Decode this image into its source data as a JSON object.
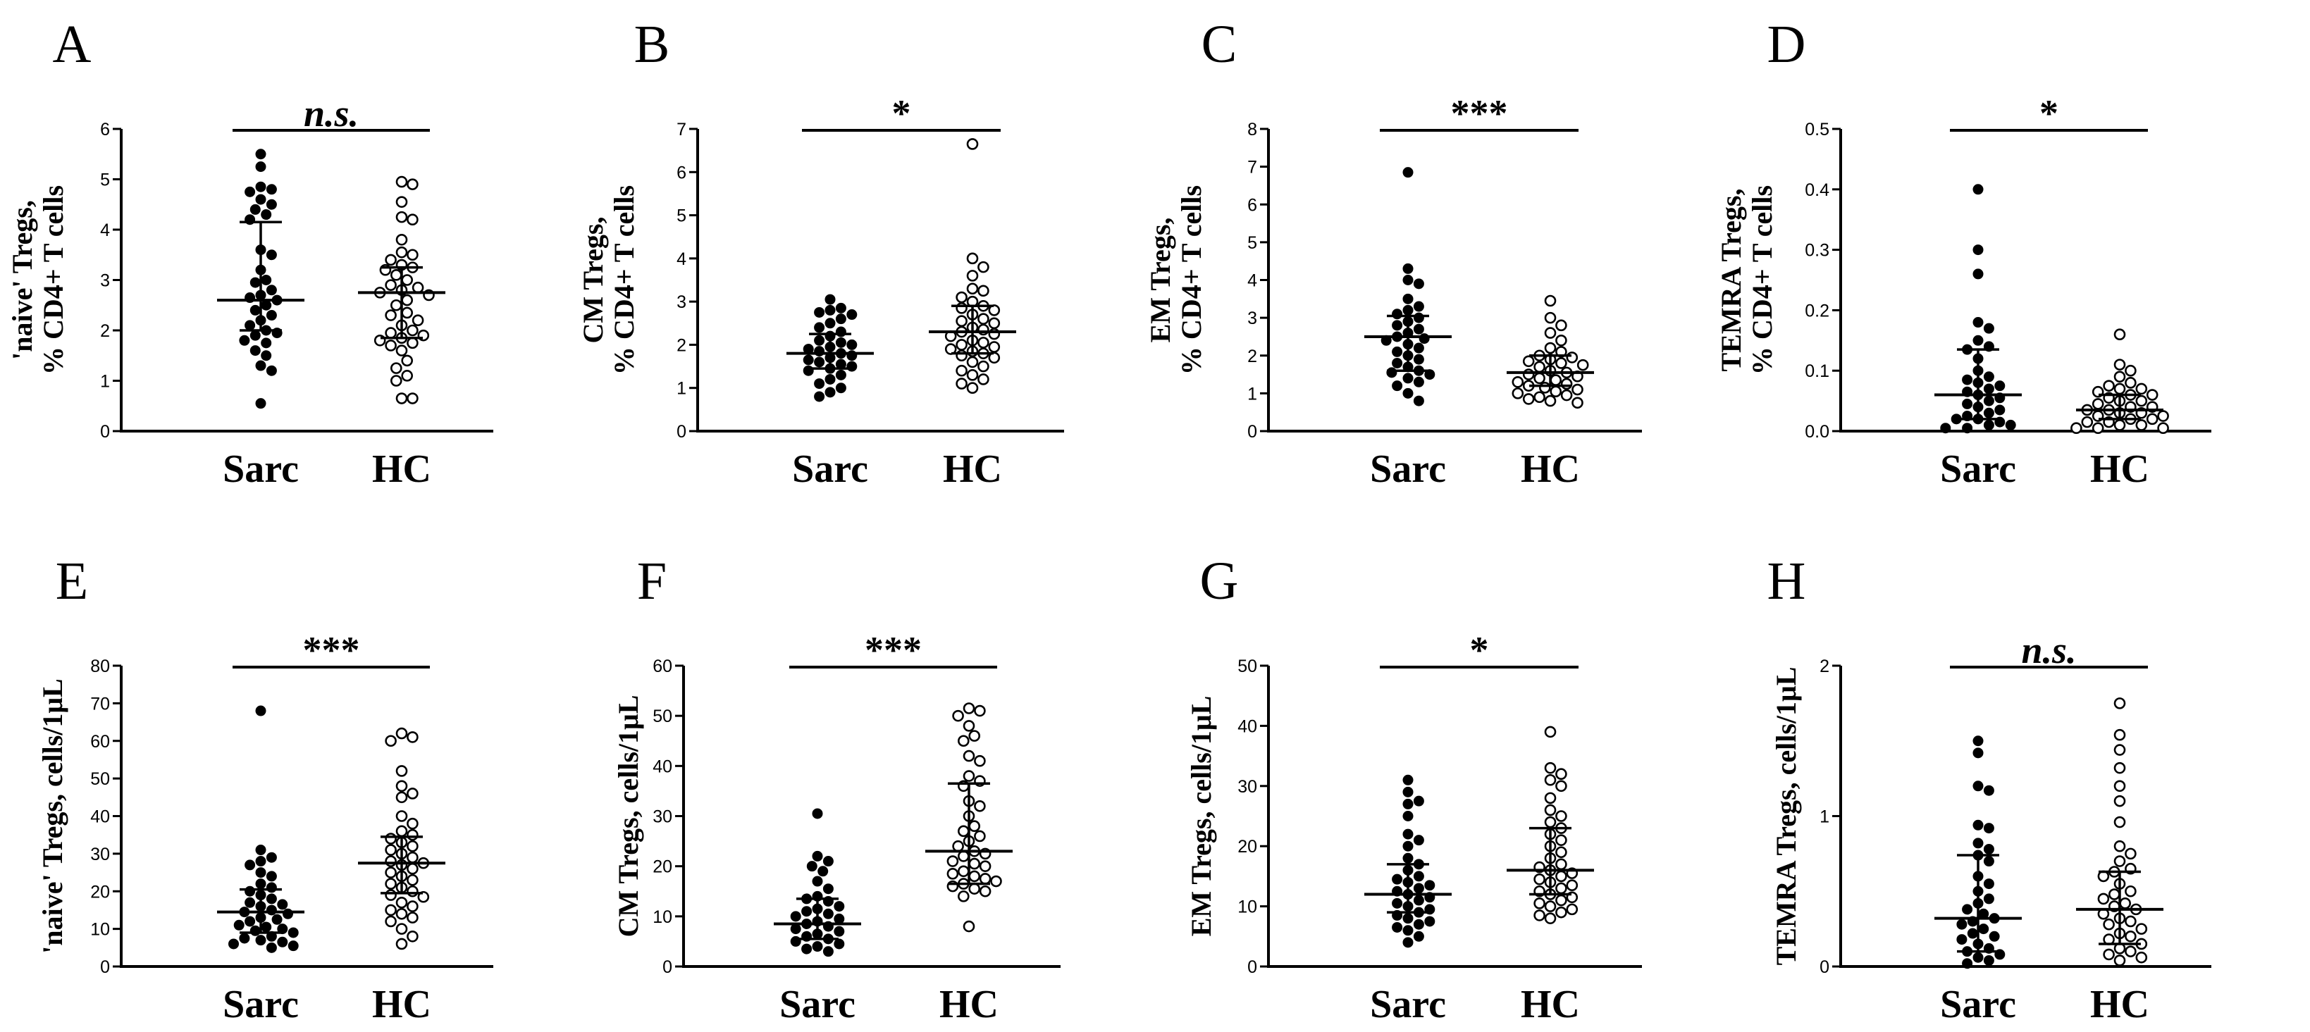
{
  "chart_data": [
    {
      "type": "scatter",
      "panel": "A",
      "ylabel_lines": [
        "'naive' Tregs,",
        "% CD4+ T cells"
      ],
      "categories": [
        "Sarc",
        "HC"
      ],
      "ylim": [
        0,
        6
      ],
      "yticks": [
        0,
        1,
        2,
        3,
        4,
        5,
        6
      ],
      "significance": "n.s.",
      "significance_italic": true,
      "series": [
        {
          "group": "Sarc",
          "marker": "filled",
          "median": 2.6,
          "iqr": [
            2.0,
            4.15
          ],
          "values": [
            5.5,
            5.25,
            4.85,
            4.8,
            4.75,
            4.6,
            4.5,
            4.4,
            4.3,
            4.2,
            3.6,
            3.5,
            3.2,
            3.0,
            2.95,
            2.8,
            2.7,
            2.65,
            2.6,
            2.5,
            2.4,
            2.3,
            2.2,
            2.1,
            2.0,
            1.95,
            1.9,
            1.8,
            1.75,
            1.6,
            1.5,
            1.3,
            1.2,
            0.55
          ]
        },
        {
          "group": "HC",
          "marker": "open",
          "median": 2.75,
          "iqr": [
            1.85,
            3.25
          ],
          "values": [
            4.95,
            4.9,
            4.55,
            4.25,
            4.2,
            3.8,
            3.55,
            3.5,
            3.4,
            3.3,
            3.25,
            3.2,
            3.1,
            3.0,
            2.9,
            2.85,
            2.8,
            2.75,
            2.7,
            2.6,
            2.5,
            2.35,
            2.3,
            2.2,
            2.1,
            2.0,
            1.95,
            1.9,
            1.85,
            1.8,
            1.75,
            1.7,
            1.6,
            1.4,
            1.25,
            1.1,
            1.0,
            0.65,
            0.65
          ]
        }
      ]
    },
    {
      "type": "scatter",
      "panel": "B",
      "ylabel_lines": [
        "CM Tregs,",
        "% CD4+ T cells"
      ],
      "categories": [
        "Sarc",
        "HC"
      ],
      "ylim": [
        0,
        7
      ],
      "yticks": [
        0,
        1,
        2,
        3,
        4,
        5,
        6,
        7
      ],
      "significance": "*",
      "significance_italic": false,
      "series": [
        {
          "group": "Sarc",
          "marker": "filled",
          "median": 1.8,
          "iqr": [
            1.45,
            2.25
          ],
          "values": [
            3.05,
            2.85,
            2.8,
            2.75,
            2.7,
            2.6,
            2.5,
            2.4,
            2.3,
            2.2,
            2.1,
            2.05,
            2.0,
            1.95,
            1.9,
            1.85,
            1.8,
            1.75,
            1.7,
            1.65,
            1.6,
            1.55,
            1.5,
            1.45,
            1.4,
            1.3,
            1.2,
            1.1,
            1.0,
            0.9,
            0.8
          ]
        },
        {
          "group": "HC",
          "marker": "open",
          "median": 2.3,
          "iqr": [
            1.8,
            2.9
          ],
          "values": [
            6.65,
            4.0,
            3.8,
            3.6,
            3.3,
            3.25,
            3.1,
            3.0,
            2.9,
            2.85,
            2.8,
            2.7,
            2.6,
            2.55,
            2.5,
            2.4,
            2.35,
            2.3,
            2.25,
            2.2,
            2.1,
            2.05,
            2.0,
            1.95,
            1.9,
            1.85,
            1.8,
            1.75,
            1.7,
            1.6,
            1.5,
            1.4,
            1.3,
            1.2,
            1.1,
            1.0
          ]
        }
      ]
    },
    {
      "type": "scatter",
      "panel": "C",
      "ylabel_lines": [
        "EM Tregs,",
        "% CD4+ T cells"
      ],
      "categories": [
        "Sarc",
        "HC"
      ],
      "ylim": [
        0,
        8
      ],
      "yticks": [
        0,
        1,
        2,
        3,
        4,
        5,
        6,
        7,
        8
      ],
      "significance": "***",
      "significance_italic": false,
      "series": [
        {
          "group": "Sarc",
          "marker": "filled",
          "median": 2.5,
          "iqr": [
            1.6,
            3.05
          ],
          "values": [
            6.85,
            4.3,
            4.0,
            3.9,
            3.5,
            3.3,
            3.2,
            3.1,
            3.0,
            2.9,
            2.8,
            2.7,
            2.6,
            2.5,
            2.45,
            2.4,
            2.3,
            2.2,
            2.1,
            2.0,
            1.9,
            1.8,
            1.7,
            1.6,
            1.55,
            1.5,
            1.4,
            1.3,
            1.2,
            1.0,
            0.8
          ]
        },
        {
          "group": "HC",
          "marker": "open",
          "median": 1.55,
          "iqr": [
            1.2,
            2.0
          ],
          "values": [
            3.45,
            3.0,
            2.8,
            2.6,
            2.4,
            2.2,
            2.1,
            2.0,
            1.95,
            1.9,
            1.85,
            1.8,
            1.75,
            1.7,
            1.6,
            1.55,
            1.5,
            1.45,
            1.4,
            1.35,
            1.3,
            1.25,
            1.2,
            1.15,
            1.1,
            1.05,
            1.0,
            0.95,
            0.9,
            0.85,
            0.8,
            0.75
          ]
        }
      ]
    },
    {
      "type": "scatter",
      "panel": "D",
      "ylabel_lines": [
        "TEMRA Tregs,",
        "% CD4+ T cells"
      ],
      "categories": [
        "Sarc",
        "HC"
      ],
      "ylim": [
        0,
        0.5
      ],
      "yticks": [
        0.0,
        0.1,
        0.2,
        0.3,
        0.4,
        0.5
      ],
      "ytick_labels": [
        "0.0",
        "0.1",
        "0.2",
        "0.3",
        "0.4",
        "0.5"
      ],
      "significance": "*",
      "significance_italic": false,
      "series": [
        {
          "group": "Sarc",
          "marker": "filled",
          "median": 0.06,
          "iqr": [
            0.02,
            0.135
          ],
          "values": [
            0.4,
            0.3,
            0.26,
            0.18,
            0.17,
            0.15,
            0.14,
            0.135,
            0.12,
            0.1,
            0.09,
            0.085,
            0.08,
            0.075,
            0.07,
            0.065,
            0.06,
            0.055,
            0.05,
            0.045,
            0.04,
            0.035,
            0.03,
            0.025,
            0.02,
            0.02,
            0.015,
            0.01,
            0.01,
            0.005,
            0.005
          ]
        },
        {
          "group": "HC",
          "marker": "open",
          "median": 0.035,
          "iqr": [
            0.02,
            0.06
          ],
          "values": [
            0.16,
            0.11,
            0.1,
            0.09,
            0.08,
            0.075,
            0.07,
            0.07,
            0.065,
            0.06,
            0.06,
            0.055,
            0.05,
            0.05,
            0.045,
            0.04,
            0.04,
            0.035,
            0.035,
            0.03,
            0.03,
            0.025,
            0.025,
            0.02,
            0.02,
            0.015,
            0.015,
            0.01,
            0.01,
            0.005,
            0.005,
            0.005
          ]
        }
      ]
    },
    {
      "type": "scatter",
      "panel": "E",
      "ylabel_lines": [
        "'naive' Tregs, cells/1μL"
      ],
      "categories": [
        "Sarc",
        "HC"
      ],
      "ylim": [
        0,
        80
      ],
      "yticks": [
        0,
        10,
        20,
        30,
        40,
        50,
        60,
        70,
        80
      ],
      "significance": "***",
      "significance_italic": false,
      "series": [
        {
          "group": "Sarc",
          "marker": "filled",
          "median": 14.5,
          "iqr": [
            9.0,
            20.5
          ],
          "values": [
            68,
            31,
            29,
            28,
            27,
            25,
            24,
            22,
            21,
            20,
            19,
            18,
            17,
            16.5,
            16,
            15,
            14.5,
            14,
            13,
            12.5,
            12,
            11,
            10.5,
            10,
            9.5,
            9,
            8,
            7.5,
            7,
            6.5,
            6,
            5.5,
            5
          ]
        },
        {
          "group": "HC",
          "marker": "open",
          "median": 27.5,
          "iqr": [
            19.5,
            34.5
          ],
          "values": [
            62,
            61,
            60,
            52,
            48,
            46,
            45,
            40,
            38,
            36,
            35,
            34,
            33,
            32,
            31,
            30,
            29,
            28,
            27.5,
            27,
            26,
            25,
            24,
            23,
            22,
            21,
            20,
            19,
            18.5,
            17,
            16,
            15,
            14,
            13,
            12,
            10,
            8,
            6
          ]
        }
      ]
    },
    {
      "type": "scatter",
      "panel": "F",
      "ylabel_lines": [
        "CM Tregs, cells/1μL"
      ],
      "categories": [
        "Sarc",
        "HC"
      ],
      "ylim": [
        0,
        60
      ],
      "yticks": [
        0,
        10,
        20,
        30,
        40,
        50,
        60
      ],
      "significance": "***",
      "significance_italic": false,
      "series": [
        {
          "group": "Sarc",
          "marker": "filled",
          "median": 8.5,
          "iqr": [
            5.5,
            13.5
          ],
          "values": [
            30.5,
            22,
            21,
            20,
            19,
            17,
            15.5,
            14,
            13.5,
            13,
            12,
            11.5,
            11,
            10.5,
            10,
            9.5,
            9,
            8.5,
            8,
            7.5,
            7,
            6.5,
            6,
            5.5,
            5,
            4.5,
            4,
            3.5,
            3
          ]
        },
        {
          "group": "HC",
          "marker": "open",
          "median": 23.0,
          "iqr": [
            16.5,
            36.5
          ],
          "values": [
            51.5,
            51,
            50,
            48,
            46,
            45,
            42,
            41,
            38,
            37,
            36,
            33,
            32,
            30,
            28,
            27,
            26,
            25,
            24,
            23,
            22.5,
            22,
            21,
            20.5,
            20,
            19,
            18.5,
            18,
            17.5,
            17,
            16.5,
            16,
            15.5,
            15,
            14,
            8
          ]
        }
      ]
    },
    {
      "type": "scatter",
      "panel": "G",
      "ylabel_lines": [
        "EM Tregs, cells/1μL"
      ],
      "categories": [
        "Sarc",
        "HC"
      ],
      "ylim": [
        0,
        50
      ],
      "yticks": [
        0,
        10,
        20,
        30,
        40,
        50
      ],
      "significance": "*",
      "significance_italic": false,
      "series": [
        {
          "group": "Sarc",
          "marker": "filled",
          "median": 12.0,
          "iqr": [
            9.0,
            17.0
          ],
          "values": [
            31,
            29,
            27.5,
            27,
            25,
            22,
            21,
            20,
            18,
            17,
            16,
            15,
            14.5,
            14,
            13.5,
            13,
            12.5,
            12,
            11.5,
            11,
            10.5,
            10,
            9.5,
            9,
            8.5,
            8,
            7.5,
            7,
            6.5,
            6,
            5,
            4
          ]
        },
        {
          "group": "HC",
          "marker": "open",
          "median": 16.0,
          "iqr": [
            12.0,
            23.0
          ],
          "values": [
            39,
            33,
            32,
            31,
            30,
            28,
            26,
            25,
            24,
            23,
            22,
            21,
            20,
            19,
            18,
            17,
            16.5,
            16,
            15.5,
            15,
            14.5,
            14,
            13.5,
            13,
            12.5,
            12,
            11.5,
            11,
            10.5,
            10,
            9.5,
            9,
            8.5,
            8
          ]
        }
      ]
    },
    {
      "type": "scatter",
      "panel": "H",
      "ylabel_lines": [
        "TEMRA Tregs, cells/1μL"
      ],
      "categories": [
        "Sarc",
        "HC"
      ],
      "ylim": [
        0,
        2
      ],
      "yticks": [
        0,
        1,
        2
      ],
      "significance": "n.s.",
      "significance_italic": true,
      "series": [
        {
          "group": "Sarc",
          "marker": "filled",
          "median": 0.32,
          "iqr": [
            0.1,
            0.74
          ],
          "values": [
            1.5,
            1.42,
            1.2,
            1.17,
            0.94,
            0.92,
            0.82,
            0.78,
            0.74,
            0.7,
            0.6,
            0.55,
            0.5,
            0.45,
            0.42,
            0.38,
            0.35,
            0.32,
            0.3,
            0.28,
            0.25,
            0.22,
            0.2,
            0.18,
            0.15,
            0.12,
            0.1,
            0.08,
            0.06,
            0.04,
            0.02
          ]
        },
        {
          "group": "HC",
          "marker": "open",
          "median": 0.38,
          "iqr": [
            0.15,
            0.63
          ],
          "values": [
            1.75,
            1.54,
            1.44,
            1.32,
            1.2,
            1.1,
            0.96,
            0.8,
            0.75,
            0.7,
            0.65,
            0.63,
            0.6,
            0.55,
            0.5,
            0.48,
            0.45,
            0.42,
            0.4,
            0.38,
            0.35,
            0.32,
            0.3,
            0.28,
            0.25,
            0.22,
            0.2,
            0.18,
            0.15,
            0.12,
            0.1,
            0.08,
            0.06,
            0.04
          ]
        }
      ]
    }
  ]
}
